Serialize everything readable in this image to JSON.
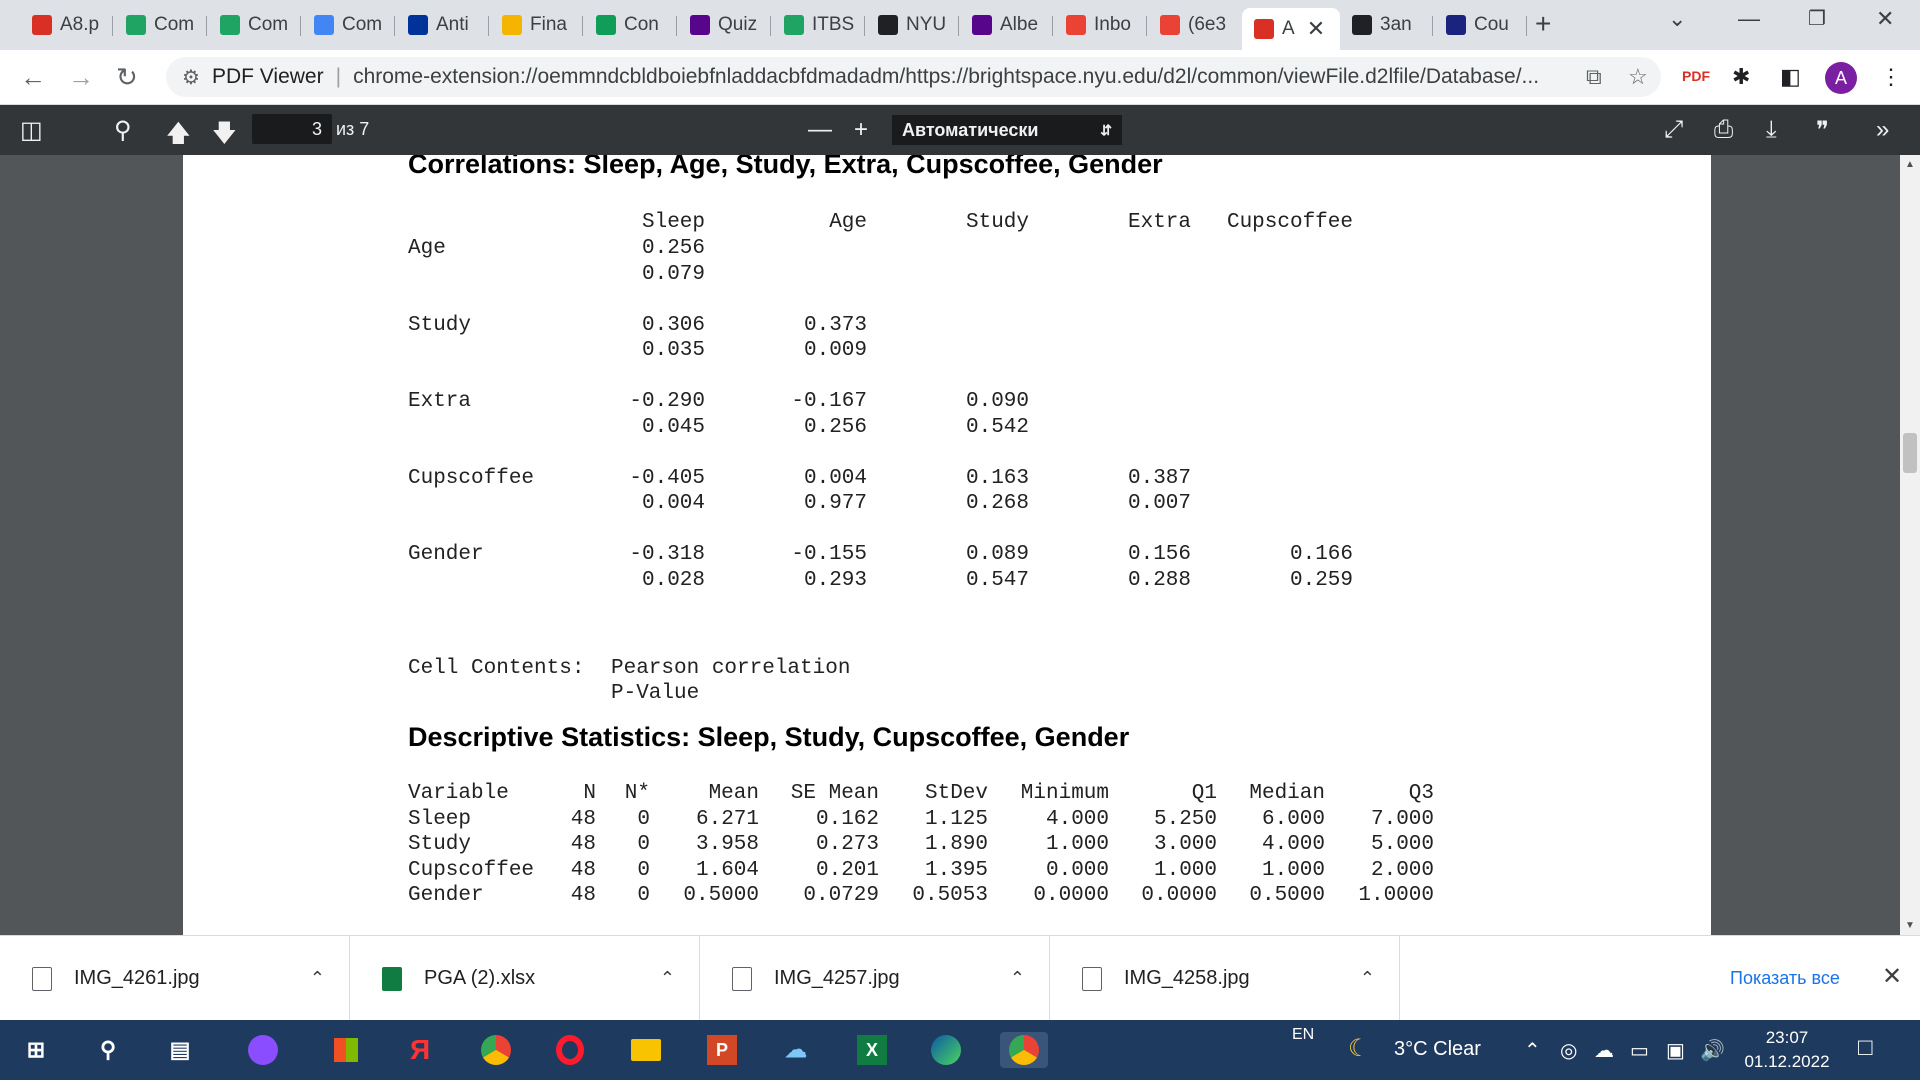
{
  "browser": {
    "tabs": [
      {
        "label": "A8.p",
        "icon": "pdf-icon",
        "color": "#d93025"
      },
      {
        "label": "Com",
        "icon": "google-drive-icon",
        "color": "#1fa463"
      },
      {
        "label": "Com",
        "icon": "google-drive-icon",
        "color": "#1fa463"
      },
      {
        "label": "Com",
        "icon": "google-docs-icon",
        "color": "#4285f4"
      },
      {
        "label": "Anti",
        "icon": "eu-flag-icon",
        "color": "#003399"
      },
      {
        "label": "Fina",
        "icon": "google-slides-icon",
        "color": "#f4b400"
      },
      {
        "label": "Con",
        "icon": "google-sheets-icon",
        "color": "#0f9d58"
      },
      {
        "label": "Quiz",
        "icon": "nyu-torch-icon",
        "color": "#57068c"
      },
      {
        "label": "ITBS",
        "icon": "google-drive-icon",
        "color": "#1fa463"
      },
      {
        "label": "NYU",
        "icon": "globe-icon",
        "color": "#202124"
      },
      {
        "label": "Albe",
        "icon": "nyu-torch-icon",
        "color": "#57068c"
      },
      {
        "label": "Inbo",
        "icon": "gmail-icon",
        "color": "#ea4335"
      },
      {
        "label": "(6e3",
        "icon": "gmail-icon",
        "color": "#ea4335"
      },
      {
        "label": "A",
        "icon": "pdf-icon",
        "color": "#d93025"
      },
      {
        "label": "3an",
        "icon": "globe-icon",
        "color": "#202124"
      },
      {
        "label": "Cou",
        "icon": "star-badge-icon",
        "color": "#1a237e"
      }
    ],
    "address": {
      "site_label": "PDF Viewer",
      "url": "chrome-extension://oemmndcbldboiebfnladdacbfdmadadm/https://brightspace.nyu.edu/d2l/common/viewFile.d2lfile/Database/..."
    },
    "profile_initial": "A"
  },
  "pdf_toolbar": {
    "page_current": "3",
    "page_count": "из 7",
    "zoom_value": "Автоматически"
  },
  "document": {
    "correlations_title": "Correlations: Sleep, Age, Study, Extra, Cupscoffee, Gender",
    "corr_columns": [
      "Sleep",
      "Age",
      "Study",
      "Extra",
      "Cupscoffee"
    ],
    "corr_rows": [
      {
        "name": "Age",
        "r": [
          "0.256"
        ],
        "p": [
          "0.079"
        ]
      },
      {
        "name": "Study",
        "r": [
          "0.306",
          "0.373"
        ],
        "p": [
          "0.035",
          "0.009"
        ]
      },
      {
        "name": "Extra",
        "r": [
          "-0.290",
          "-0.167",
          "0.090"
        ],
        "p": [
          "0.045",
          "0.256",
          "0.542"
        ]
      },
      {
        "name": "Cupscoffee",
        "r": [
          "-0.405",
          "0.004",
          "0.163",
          "0.387"
        ],
        "p": [
          "0.004",
          "0.977",
          "0.268",
          "0.007"
        ]
      },
      {
        "name": "Gender",
        "r": [
          "-0.318",
          "-0.155",
          "0.089",
          "0.156",
          "0.166"
        ],
        "p": [
          "0.028",
          "0.293",
          "0.547",
          "0.288",
          "0.259"
        ]
      }
    ],
    "cell_contents_label": "Cell Contents:",
    "cell_contents_line1": "Pearson correlation",
    "cell_contents_line2": "P-Value",
    "descriptive_title": "Descriptive Statistics: Sleep, Study, Cupscoffee, Gender",
    "desc_columns": [
      "Variable",
      "N",
      "N*",
      "Mean",
      "SE Mean",
      "StDev",
      "Minimum",
      "Q1",
      "Median",
      "Q3"
    ],
    "desc_rows": [
      [
        "Sleep",
        "48",
        "0",
        "6.271",
        "0.162",
        "1.125",
        "4.000",
        "5.250",
        "6.000",
        "7.000"
      ],
      [
        "Study",
        "48",
        "0",
        "3.958",
        "0.273",
        "1.890",
        "1.000",
        "3.000",
        "4.000",
        "5.000"
      ],
      [
        "Cupscoffee",
        "48",
        "0",
        "1.604",
        "0.201",
        "1.395",
        "0.000",
        "1.000",
        "1.000",
        "2.000"
      ],
      [
        "Gender",
        "48",
        "0",
        "0.5000",
        "0.0729",
        "0.5053",
        "0.0000",
        "0.0000",
        "0.5000",
        "1.0000"
      ]
    ]
  },
  "downloads": {
    "items": [
      "IMG_4261.jpg",
      "PGA (2).xlsx",
      "IMG_4257.jpg",
      "IMG_4258.jpg"
    ],
    "show_all": "Показать все"
  },
  "taskbar": {
    "lang": "EN",
    "weather": "3°C  Clear",
    "time": "23:07",
    "date": "01.12.2022"
  }
}
